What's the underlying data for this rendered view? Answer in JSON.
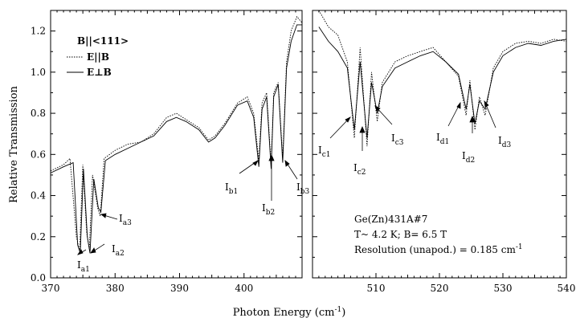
{
  "chart_data": {
    "type": "line",
    "xlabel": "Photon Energy (cm",
    "xlabel_sup": "-1",
    "xlabel_close": ")",
    "ylabel": "Relative Transmission",
    "ylim": [
      0.0,
      1.3
    ],
    "yticks": [
      "0.0",
      "0.2",
      "0.4",
      "0.6",
      "0.8",
      "1.0",
      "1.2"
    ],
    "panels": [
      {
        "xlim": [
          370,
          409
        ],
        "xticks": [
          "370",
          "380",
          "390",
          "400"
        ]
      },
      {
        "xlim": [
          500,
          540
        ],
        "xticks": [
          "510",
          "520",
          "530",
          "540"
        ]
      }
    ],
    "legend": {
      "title": "B||<111>",
      "items": [
        "E||B",
        "E⊥B"
      ]
    },
    "annotations": {
      "sample": "Ge(Zn)431A#7",
      "conditions": "T~ 4.2 K; B= 6.5 T",
      "resolution": "Resolution (unapod.) = 0.185 cm",
      "resolution_sup": "-1"
    },
    "peak_labels": [
      {
        "main": "I",
        "sub": "a1"
      },
      {
        "main": "I",
        "sub": "a2"
      },
      {
        "main": "I",
        "sub": "a3"
      },
      {
        "main": "I",
        "sub": "b1"
      },
      {
        "main": "I",
        "sub": "b2"
      },
      {
        "main": "I",
        "sub": "b3"
      },
      {
        "main": "I",
        "sub": "c1"
      },
      {
        "main": "I",
        "sub": "c2"
      },
      {
        "main": "I",
        "sub": "c3"
      },
      {
        "main": "I",
        "sub": "d1"
      },
      {
        "main": "I",
        "sub": "d2"
      },
      {
        "main": "I",
        "sub": "d3"
      }
    ],
    "series": [
      {
        "style": "dotted",
        "panel_left": [
          [
            370,
            0.52
          ],
          [
            372,
            0.55
          ],
          [
            373,
            0.58
          ],
          [
            374,
            0.2
          ],
          [
            374.5,
            0.13
          ],
          [
            375,
            0.55
          ],
          [
            375.6,
            0.22
          ],
          [
            376,
            0.14
          ],
          [
            376.5,
            0.5
          ],
          [
            377.3,
            0.34
          ],
          [
            377.7,
            0.3
          ],
          [
            378.3,
            0.58
          ],
          [
            380,
            0.62
          ],
          [
            382,
            0.65
          ],
          [
            384,
            0.66
          ],
          [
            386,
            0.7
          ],
          [
            388,
            0.78
          ],
          [
            389.5,
            0.8
          ],
          [
            391,
            0.77
          ],
          [
            393,
            0.73
          ],
          [
            394.5,
            0.67
          ],
          [
            395.5,
            0.69
          ],
          [
            397,
            0.75
          ],
          [
            399,
            0.85
          ],
          [
            400.5,
            0.88
          ],
          [
            401.5,
            0.8
          ],
          [
            402.3,
            0.57
          ],
          [
            402.8,
            0.85
          ],
          [
            403.5,
            0.9
          ],
          [
            404.2,
            0.55
          ],
          [
            404.6,
            0.9
          ],
          [
            405.3,
            0.95
          ],
          [
            406,
            0.58
          ],
          [
            406.6,
            1.05
          ],
          [
            407.3,
            1.2
          ],
          [
            408.2,
            1.27
          ],
          [
            409,
            1.24
          ]
        ],
        "panel_right": [
          [
            501,
            1.3
          ],
          [
            502.5,
            1.22
          ],
          [
            504,
            1.18
          ],
          [
            505.5,
            1.05
          ],
          [
            506.6,
            0.68
          ],
          [
            507.5,
            1.12
          ],
          [
            508.6,
            0.64
          ],
          [
            509.3,
            1.0
          ],
          [
            510.2,
            0.76
          ],
          [
            511,
            0.95
          ],
          [
            513,
            1.05
          ],
          [
            515,
            1.08
          ],
          [
            517,
            1.1
          ],
          [
            519,
            1.12
          ],
          [
            521,
            1.05
          ],
          [
            523,
            0.98
          ],
          [
            524.2,
            0.79
          ],
          [
            524.8,
            0.96
          ],
          [
            525.6,
            0.72
          ],
          [
            526.3,
            0.88
          ],
          [
            527.2,
            0.79
          ],
          [
            528.5,
            1.02
          ],
          [
            530,
            1.1
          ],
          [
            532,
            1.14
          ],
          [
            534,
            1.15
          ],
          [
            536,
            1.14
          ],
          [
            538,
            1.16
          ],
          [
            540,
            1.15
          ]
        ]
      },
      {
        "style": "solid",
        "panel_left": [
          [
            370,
            0.51
          ],
          [
            372,
            0.54
          ],
          [
            373.5,
            0.56
          ],
          [
            374.2,
            0.16
          ],
          [
            374.6,
            0.12
          ],
          [
            375.1,
            0.53
          ],
          [
            375.7,
            0.2
          ],
          [
            376.1,
            0.12
          ],
          [
            376.7,
            0.48
          ],
          [
            377.4,
            0.34
          ],
          [
            377.8,
            0.32
          ],
          [
            378.5,
            0.57
          ],
          [
            380,
            0.6
          ],
          [
            382,
            0.63
          ],
          [
            384,
            0.66
          ],
          [
            386,
            0.69
          ],
          [
            388,
            0.76
          ],
          [
            389.5,
            0.78
          ],
          [
            391,
            0.76
          ],
          [
            393,
            0.72
          ],
          [
            394.5,
            0.66
          ],
          [
            395.5,
            0.68
          ],
          [
            397,
            0.74
          ],
          [
            399,
            0.84
          ],
          [
            400.5,
            0.86
          ],
          [
            401.5,
            0.78
          ],
          [
            402.3,
            0.54
          ],
          [
            402.8,
            0.82
          ],
          [
            403.5,
            0.88
          ],
          [
            404.2,
            0.53
          ],
          [
            404.6,
            0.88
          ],
          [
            405.3,
            0.94
          ],
          [
            406,
            0.56
          ],
          [
            406.6,
            1.02
          ],
          [
            407.3,
            1.15
          ],
          [
            408.2,
            1.23
          ],
          [
            409,
            1.23
          ]
        ],
        "panel_right": [
          [
            501,
            1.22
          ],
          [
            502.5,
            1.15
          ],
          [
            504,
            1.1
          ],
          [
            505.5,
            1.02
          ],
          [
            506.6,
            0.72
          ],
          [
            507.5,
            1.05
          ],
          [
            508.6,
            0.68
          ],
          [
            509.3,
            0.95
          ],
          [
            510.2,
            0.8
          ],
          [
            511,
            0.93
          ],
          [
            513,
            1.02
          ],
          [
            515,
            1.05
          ],
          [
            517,
            1.08
          ],
          [
            519,
            1.1
          ],
          [
            521,
            1.05
          ],
          [
            523,
            0.99
          ],
          [
            524.2,
            0.82
          ],
          [
            524.8,
            0.94
          ],
          [
            525.6,
            0.75
          ],
          [
            526.3,
            0.86
          ],
          [
            527.2,
            0.82
          ],
          [
            528.5,
            1.0
          ],
          [
            530,
            1.08
          ],
          [
            532,
            1.12
          ],
          [
            534,
            1.14
          ],
          [
            536,
            1.13
          ],
          [
            538,
            1.15
          ],
          [
            540,
            1.16
          ]
        ]
      }
    ],
    "grid": false
  }
}
